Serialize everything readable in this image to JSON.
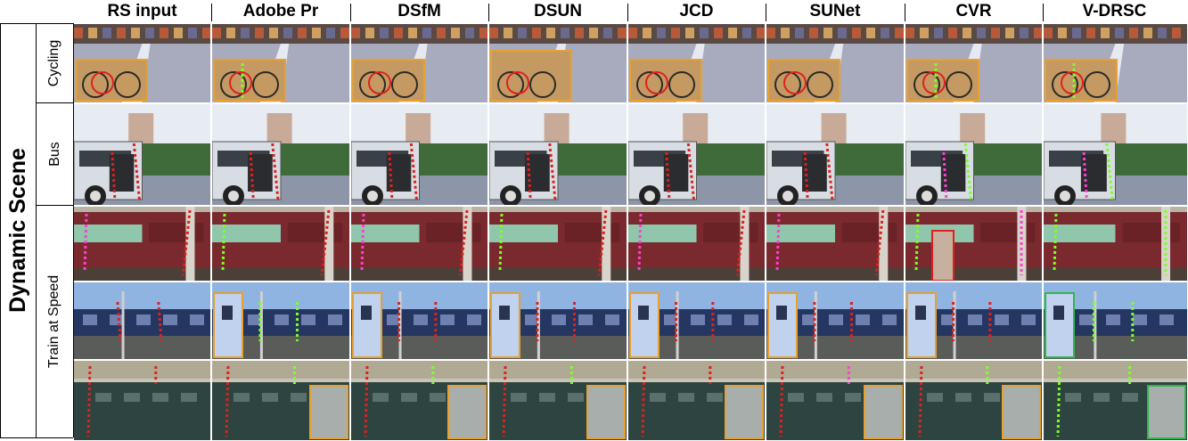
{
  "methods": [
    "RS input",
    "Adobe Pr",
    "DSfM",
    "DSUN",
    "JCD",
    "SUNet",
    "CVR",
    "V-DRSC"
  ],
  "group_label": "Dynamic Scene",
  "scenes": [
    {
      "label": "Cycling",
      "kind": "cycling"
    },
    {
      "label": "Bus",
      "kind": "bus"
    },
    {
      "label": "",
      "kind": "train_red"
    },
    {
      "label": "Train at Speed",
      "kind": "train_blue"
    },
    {
      "label": "",
      "kind": "train_green"
    }
  ],
  "colors": {
    "inset_orange": "#e8a030",
    "inset_green": "#2fb84a",
    "mark_red": "#e0201e",
    "mark_green": "#7dff2a",
    "mark_magenta": "#ff3fd0"
  }
}
